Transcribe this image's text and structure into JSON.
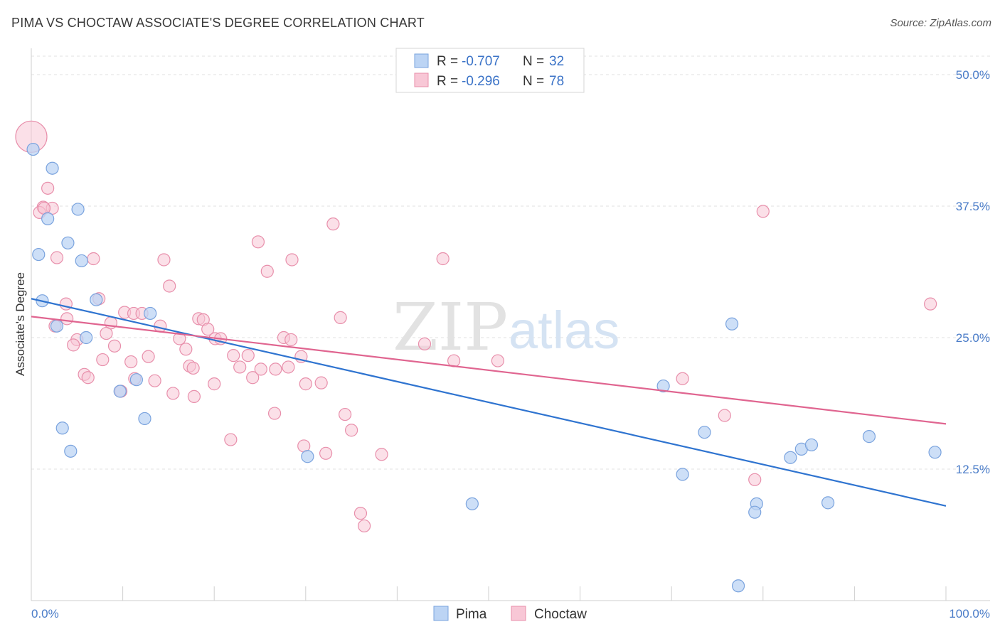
{
  "title": "PIMA VS CHOCTAW ASSOCIATE'S DEGREE CORRELATION CHART",
  "source": "Source: ZipAtlas.com",
  "watermark": {
    "part1": "ZIP",
    "part2": "atlas"
  },
  "legend": {
    "r_label": "R =",
    "n_label": "N =",
    "rows": [
      {
        "name": "Pima",
        "r": "-0.707",
        "n": "32",
        "fill": "#bcd4f4",
        "stroke": "#7aa3de"
      },
      {
        "name": "Choctaw",
        "r": "-0.296",
        "n": "78",
        "fill": "#f8c7d6",
        "stroke": "#e88fab"
      }
    ]
  },
  "chart_data": {
    "type": "scatter",
    "xlabel": "",
    "ylabel": "Associate's Degree",
    "xlim": [
      0,
      100
    ],
    "ylim": [
      0,
      52.5
    ],
    "x_tick_labels": [
      {
        "value": 0,
        "label": "0.0%"
      },
      {
        "value": 100,
        "label": "100.0%"
      }
    ],
    "y_tick_labels": [
      {
        "value": 12.5,
        "label": "12.5%"
      },
      {
        "value": 25.0,
        "label": "25.0%"
      },
      {
        "value": 37.5,
        "label": "37.5%"
      },
      {
        "value": 50.0,
        "label": "50.0%"
      }
    ],
    "grid": true,
    "legend_position": "top-center",
    "series": [
      {
        "name": "Pima",
        "color": "#6f9fe0",
        "line_color": "#2f74d0",
        "trend": [
          [
            0,
            28.7
          ],
          [
            100,
            9.0
          ]
        ],
        "points": [
          [
            0.2,
            42.9
          ],
          [
            2.3,
            41.1
          ],
          [
            0.8,
            32.9
          ],
          [
            1.2,
            28.5
          ],
          [
            1.8,
            36.3
          ],
          [
            5.1,
            37.2
          ],
          [
            4.0,
            34.0
          ],
          [
            5.5,
            32.3
          ],
          [
            2.8,
            26.1
          ],
          [
            6.0,
            25.0
          ],
          [
            7.1,
            28.6
          ],
          [
            13.0,
            27.3
          ],
          [
            11.5,
            21.0
          ],
          [
            9.7,
            19.9
          ],
          [
            3.4,
            16.4
          ],
          [
            12.4,
            17.3
          ],
          [
            4.3,
            14.2
          ],
          [
            30.2,
            13.7
          ],
          [
            48.2,
            9.2
          ],
          [
            69.1,
            20.4
          ],
          [
            76.6,
            26.3
          ],
          [
            71.2,
            12.0
          ],
          [
            73.6,
            16.0
          ],
          [
            83.0,
            13.6
          ],
          [
            84.2,
            14.4
          ],
          [
            85.3,
            14.8
          ],
          [
            91.6,
            15.6
          ],
          [
            98.8,
            14.1
          ],
          [
            79.3,
            9.2
          ],
          [
            79.1,
            8.4
          ],
          [
            87.1,
            9.3
          ],
          [
            77.3,
            1.4
          ]
        ]
      },
      {
        "name": "Choctaw",
        "color": "#ec9ab4",
        "line_color": "#e06590",
        "trend": [
          [
            0,
            27.0
          ],
          [
            100,
            16.8
          ]
        ],
        "points": [
          [
            0.0,
            44.1
          ],
          [
            1.8,
            39.2
          ],
          [
            1.3,
            37.4
          ],
          [
            2.3,
            37.3
          ],
          [
            0.9,
            36.9
          ],
          [
            2.8,
            32.6
          ],
          [
            6.8,
            32.5
          ],
          [
            3.8,
            28.2
          ],
          [
            7.4,
            28.7
          ],
          [
            2.6,
            26.1
          ],
          [
            3.9,
            26.8
          ],
          [
            8.7,
            26.4
          ],
          [
            5.0,
            24.8
          ],
          [
            4.6,
            24.3
          ],
          [
            8.2,
            25.4
          ],
          [
            9.1,
            24.2
          ],
          [
            7.8,
            22.9
          ],
          [
            5.8,
            21.5
          ],
          [
            6.2,
            21.2
          ],
          [
            10.9,
            22.7
          ],
          [
            12.8,
            23.2
          ],
          [
            10.2,
            27.4
          ],
          [
            11.2,
            27.3
          ],
          [
            12.1,
            27.3
          ],
          [
            14.1,
            26.1
          ],
          [
            15.1,
            29.9
          ],
          [
            14.5,
            32.4
          ],
          [
            16.2,
            24.9
          ],
          [
            16.9,
            23.9
          ],
          [
            17.3,
            22.3
          ],
          [
            17.7,
            22.1
          ],
          [
            18.3,
            26.8
          ],
          [
            18.8,
            26.7
          ],
          [
            19.3,
            25.8
          ],
          [
            20.1,
            24.9
          ],
          [
            20.7,
            24.9
          ],
          [
            13.5,
            20.9
          ],
          [
            15.5,
            19.7
          ],
          [
            17.8,
            19.4
          ],
          [
            20.0,
            20.6
          ],
          [
            22.1,
            23.3
          ],
          [
            22.8,
            22.2
          ],
          [
            23.7,
            23.3
          ],
          [
            24.2,
            21.2
          ],
          [
            24.8,
            34.1
          ],
          [
            25.1,
            22.0
          ],
          [
            25.8,
            31.3
          ],
          [
            26.7,
            22.0
          ],
          [
            27.6,
            25.0
          ],
          [
            28.1,
            22.2
          ],
          [
            28.4,
            24.8
          ],
          [
            28.5,
            32.4
          ],
          [
            29.5,
            23.2
          ],
          [
            30.0,
            20.6
          ],
          [
            31.7,
            20.7
          ],
          [
            33.0,
            35.8
          ],
          [
            33.8,
            26.9
          ],
          [
            34.3,
            17.7
          ],
          [
            35.0,
            16.2
          ],
          [
            21.8,
            15.3
          ],
          [
            26.6,
            17.8
          ],
          [
            29.8,
            14.7
          ],
          [
            32.2,
            14.0
          ],
          [
            36.0,
            8.3
          ],
          [
            36.4,
            7.1
          ],
          [
            38.3,
            13.9
          ],
          [
            43.0,
            24.4
          ],
          [
            45.0,
            32.5
          ],
          [
            46.2,
            22.8
          ],
          [
            51.0,
            22.8
          ],
          [
            71.2,
            21.1
          ],
          [
            75.8,
            17.6
          ],
          [
            79.1,
            11.5
          ],
          [
            80.0,
            37.0
          ],
          [
            98.3,
            28.2
          ],
          [
            1.4,
            37.3
          ],
          [
            11.3,
            21.1
          ],
          [
            9.8,
            19.9
          ]
        ]
      }
    ]
  }
}
